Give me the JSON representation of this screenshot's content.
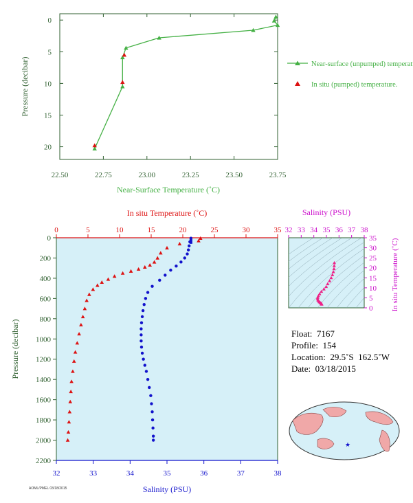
{
  "colors": {
    "near_surface": "#44b044",
    "in_situ_pumped": "#dd1111",
    "temperature": "#dd1111",
    "salinity": "#1111cc",
    "salinity_axis": "#cc11cc",
    "axis_text": "#2f5f2f",
    "plot_bg": "#d6f0f8",
    "ts_points": "#ee2288"
  },
  "chart_data": [
    {
      "id": "top",
      "type": "line",
      "xlabel": "Near-Surface Temperature (˚C)",
      "ylabel": "Pressure (decibar)",
      "xlim": [
        22.5,
        23.75
      ],
      "ylim": [
        22,
        -1
      ],
      "x_ticks": [
        "22.50",
        "22.75",
        "23.00",
        "23.25",
        "23.50",
        "23.75"
      ],
      "y_ticks": [
        "0",
        "5",
        "10",
        "15",
        "20"
      ],
      "legend": [
        "Near-surface (unpumped) temperature.",
        "In situ (pumped) temperature."
      ],
      "series": [
        {
          "name": "Near-surface (unpumped) temperature.",
          "points": [
            [
              23.74,
              -0.5
            ],
            [
              23.73,
              0.1
            ],
            [
              23.75,
              0.8
            ],
            [
              23.61,
              1.6
            ],
            [
              23.07,
              2.8
            ],
            [
              22.88,
              4.4
            ],
            [
              22.86,
              5.9
            ],
            [
              22.86,
              10.5
            ],
            [
              22.7,
              20.3
            ]
          ]
        },
        {
          "name": "In situ (pumped) temperature.",
          "points": [
            [
              22.87,
              5.5
            ],
            [
              22.86,
              9.8
            ],
            [
              22.7,
              19.8
            ]
          ]
        }
      ]
    },
    {
      "id": "profile",
      "type": "scatter",
      "xlabel_top": "In situ Temperature (˚C)",
      "xlabel_bottom": "Salinity (PSU)",
      "ylabel": "Pressure (decibar)",
      "temp_lim": [
        0,
        35
      ],
      "sal_lim": [
        32,
        38
      ],
      "ylim": [
        2200,
        0
      ],
      "temp_ticks": [
        "0",
        "5",
        "10",
        "15",
        "20",
        "25",
        "30",
        "35"
      ],
      "sal_ticks": [
        "32",
        "33",
        "34",
        "35",
        "36",
        "37",
        "38"
      ],
      "y_ticks": [
        "0",
        "200",
        "400",
        "600",
        "800",
        "1000",
        "1200",
        "1400",
        "1600",
        "1800",
        "2000",
        "2200"
      ],
      "temperature": [
        [
          22.8,
          5
        ],
        [
          22.5,
          30
        ],
        [
          19.5,
          60
        ],
        [
          17.5,
          100
        ],
        [
          16.5,
          150
        ],
        [
          16.0,
          200
        ],
        [
          15.5,
          240
        ],
        [
          14.8,
          270
        ],
        [
          14.0,
          290
        ],
        [
          13.0,
          310
        ],
        [
          11.8,
          330
        ],
        [
          10.5,
          350
        ],
        [
          9.2,
          380
        ],
        [
          8.2,
          410
        ],
        [
          7.2,
          440
        ],
        [
          6.5,
          470
        ],
        [
          5.8,
          510
        ],
        [
          5.2,
          560
        ],
        [
          4.8,
          620
        ],
        [
          4.5,
          700
        ],
        [
          4.2,
          780
        ],
        [
          3.9,
          860
        ],
        [
          3.6,
          950
        ],
        [
          3.3,
          1040
        ],
        [
          3.0,
          1130
        ],
        [
          2.8,
          1220
        ],
        [
          2.6,
          1320
        ],
        [
          2.4,
          1420
        ],
        [
          2.3,
          1520
        ],
        [
          2.2,
          1620
        ],
        [
          2.1,
          1720
        ],
        [
          2.0,
          1820
        ],
        [
          1.9,
          1920
        ],
        [
          1.8,
          2000
        ]
      ],
      "salinity": [
        [
          35.65,
          5
        ],
        [
          35.62,
          40
        ],
        [
          35.6,
          80
        ],
        [
          35.58,
          120
        ],
        [
          35.55,
          160
        ],
        [
          35.48,
          200
        ],
        [
          35.38,
          240
        ],
        [
          35.25,
          280
        ],
        [
          35.1,
          320
        ],
        [
          34.95,
          370
        ],
        [
          34.8,
          420
        ],
        [
          34.6,
          480
        ],
        [
          34.48,
          540
        ],
        [
          34.42,
          600
        ],
        [
          34.38,
          660
        ],
        [
          34.35,
          720
        ],
        [
          34.33,
          780
        ],
        [
          34.31,
          840
        ],
        [
          34.3,
          900
        ],
        [
          34.3,
          960
        ],
        [
          34.3,
          1020
        ],
        [
          34.31,
          1080
        ],
        [
          34.33,
          1140
        ],
        [
          34.36,
          1200
        ],
        [
          34.4,
          1260
        ],
        [
          34.44,
          1320
        ],
        [
          34.48,
          1400
        ],
        [
          34.52,
          1480
        ],
        [
          34.56,
          1560
        ],
        [
          34.58,
          1640
        ],
        [
          34.6,
          1720
        ],
        [
          34.61,
          1800
        ],
        [
          34.62,
          1880
        ],
        [
          34.63,
          1960
        ],
        [
          34.63,
          2000
        ]
      ]
    },
    {
      "id": "ts",
      "type": "scatter",
      "xlabel": "Salinity (PSU)",
      "ylabel": "In situ Temperature (˚C)",
      "xlim": [
        32,
        38
      ],
      "ylim": [
        0,
        35
      ],
      "x_ticks": [
        "32",
        "33",
        "34",
        "35",
        "36",
        "37",
        "38"
      ],
      "y_ticks": [
        "0",
        "5",
        "10",
        "15",
        "20",
        "25",
        "30",
        "35"
      ],
      "points": [
        [
          34.63,
          1.8
        ],
        [
          34.62,
          2.0
        ],
        [
          34.6,
          2.2
        ],
        [
          34.56,
          2.4
        ],
        [
          34.5,
          2.7
        ],
        [
          34.44,
          3.0
        ],
        [
          34.38,
          3.4
        ],
        [
          34.33,
          3.9
        ],
        [
          34.3,
          4.5
        ],
        [
          34.31,
          5.2
        ],
        [
          34.36,
          6.0
        ],
        [
          34.46,
          7.0
        ],
        [
          34.6,
          8.2
        ],
        [
          34.8,
          9.4
        ],
        [
          34.98,
          10.6
        ],
        [
          35.1,
          12.0
        ],
        [
          35.25,
          13.5
        ],
        [
          35.38,
          15.0
        ],
        [
          35.48,
          16.5
        ],
        [
          35.55,
          18.0
        ],
        [
          35.6,
          19.5
        ],
        [
          35.62,
          21.0
        ],
        [
          35.63,
          22.5
        ]
      ]
    }
  ],
  "float_info": {
    "float": "Float:  7167",
    "profile": "Profile:  154",
    "location": "Location:  29.5˚S  162.5˚W",
    "date": "Date:  03/18/2015"
  },
  "map": {
    "marker": "float-location"
  },
  "stamp": "AOML/PMEL 03/18/2015"
}
